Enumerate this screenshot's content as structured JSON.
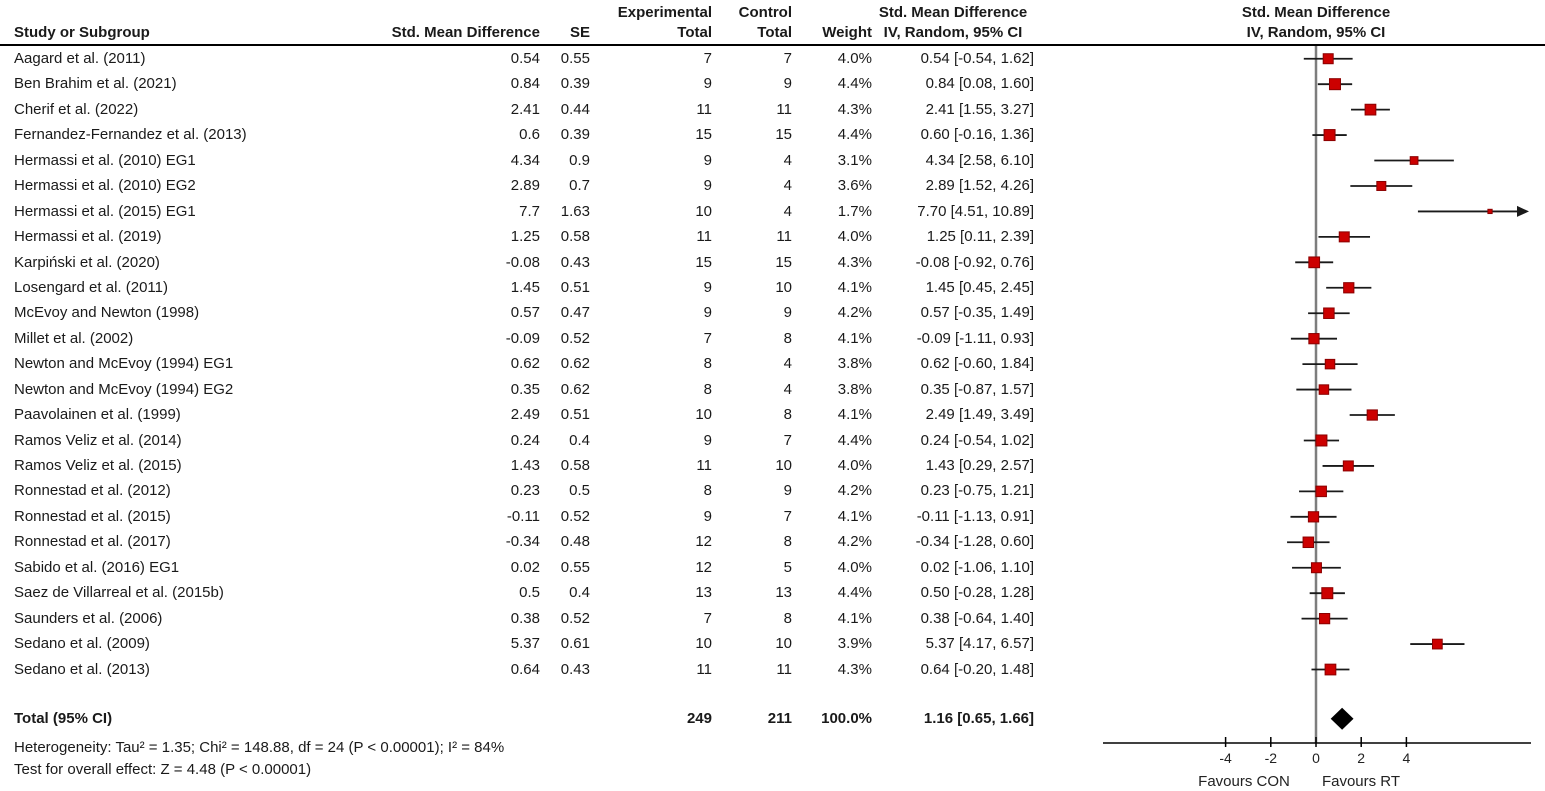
{
  "header": {
    "experimental": "Experimental",
    "control": "Control",
    "study": "Study or Subgroup",
    "smd_col": "Std. Mean Difference",
    "se": "SE",
    "total_exp": "Total",
    "total_ctrl": "Total",
    "weight": "Weight",
    "smd_ci_line1": "Std. Mean Difference",
    "smd_ci_line2": "IV, Random, 95% CI",
    "plot_line1": "Std. Mean Difference",
    "plot_line2": "IV, Random, 95% CI"
  },
  "total_row": {
    "label": "Total (95% CI)",
    "exp_total": "249",
    "ctrl_total": "211",
    "weight": "100.0%",
    "ci_text": "1.16 [0.65, 1.66]",
    "est": 1.16,
    "lo": 0.65,
    "hi": 1.66
  },
  "footer": {
    "heterogeneity": "Heterogeneity: Tau² = 1.35; Chi² = 148.88, df = 24 (P < 0.00001); I² = 84%",
    "overall_effect": "Test for overall effect: Z = 4.48 (P < 0.00001)"
  },
  "colors": {
    "marker": "#cc0000",
    "marker_border": "#8b0000",
    "ci_line": "#1a1a1a",
    "zero_line": "#7d7d7d",
    "axis": "#000000",
    "diamond": "#000000"
  },
  "chart_data": {
    "type": "scatter",
    "subtype": "forest-plot",
    "title": "Std. Mean Difference IV, Random, 95% CI",
    "x_axis": {
      "ticks": [
        -4,
        -2,
        0,
        2,
        4
      ],
      "favours_left": "Favours CON",
      "favours_right": "Favours RT"
    },
    "studies": [
      {
        "name": "Aagard et al. (2011)",
        "smd": "0.54",
        "se": "0.55",
        "exp_total": "7",
        "ctrl_total": "7",
        "weight": "4.0%",
        "ci_text": "0.54 [-0.54, 1.62]",
        "est": 0.54,
        "lo": -0.54,
        "hi": 1.62
      },
      {
        "name": "Ben Brahim et al. (2021)",
        "smd": "0.84",
        "se": "0.39",
        "exp_total": "9",
        "ctrl_total": "9",
        "weight": "4.4%",
        "ci_text": "0.84 [0.08, 1.60]",
        "est": 0.84,
        "lo": 0.08,
        "hi": 1.6
      },
      {
        "name": "Cherif et al. (2022)",
        "smd": "2.41",
        "se": "0.44",
        "exp_total": "11",
        "ctrl_total": "11",
        "weight": "4.3%",
        "ci_text": "2.41 [1.55, 3.27]",
        "est": 2.41,
        "lo": 1.55,
        "hi": 3.27
      },
      {
        "name": "Fernandez-Fernandez et al. (2013)",
        "smd": "0.6",
        "se": "0.39",
        "exp_total": "15",
        "ctrl_total": "15",
        "weight": "4.4%",
        "ci_text": "0.60 [-0.16, 1.36]",
        "est": 0.6,
        "lo": -0.16,
        "hi": 1.36
      },
      {
        "name": "Hermassi et al. (2010) EG1",
        "smd": "4.34",
        "se": "0.9",
        "exp_total": "9",
        "ctrl_total": "4",
        "weight": "3.1%",
        "ci_text": "4.34 [2.58, 6.10]",
        "est": 4.34,
        "lo": 2.58,
        "hi": 6.1
      },
      {
        "name": "Hermassi et al. (2010) EG2",
        "smd": "2.89",
        "se": "0.7",
        "exp_total": "9",
        "ctrl_total": "4",
        "weight": "3.6%",
        "ci_text": "2.89 [1.52, 4.26]",
        "est": 2.89,
        "lo": 1.52,
        "hi": 4.26
      },
      {
        "name": "Hermassi et al. (2015) EG1",
        "smd": "7.7",
        "se": "1.63",
        "exp_total": "10",
        "ctrl_total": "4",
        "weight": "1.7%",
        "ci_text": "7.70 [4.51, 10.89]",
        "est": 7.7,
        "lo": 4.51,
        "hi": 10.89
      },
      {
        "name": "Hermassi et al. (2019)",
        "smd": "1.25",
        "se": "0.58",
        "exp_total": "11",
        "ctrl_total": "11",
        "weight": "4.0%",
        "ci_text": "1.25 [0.11, 2.39]",
        "est": 1.25,
        "lo": 0.11,
        "hi": 2.39
      },
      {
        "name": "Karpiński et al. (2020)",
        "smd": "-0.08",
        "se": "0.43",
        "exp_total": "15",
        "ctrl_total": "15",
        "weight": "4.3%",
        "ci_text": "-0.08 [-0.92, 0.76]",
        "est": -0.08,
        "lo": -0.92,
        "hi": 0.76
      },
      {
        "name": "Losengard et al. (2011)",
        "smd": "1.45",
        "se": "0.51",
        "exp_total": "9",
        "ctrl_total": "10",
        "weight": "4.1%",
        "ci_text": "1.45 [0.45, 2.45]",
        "est": 1.45,
        "lo": 0.45,
        "hi": 2.45
      },
      {
        "name": "McEvoy and Newton (1998)",
        "smd": "0.57",
        "se": "0.47",
        "exp_total": "9",
        "ctrl_total": "9",
        "weight": "4.2%",
        "ci_text": "0.57 [-0.35, 1.49]",
        "est": 0.57,
        "lo": -0.35,
        "hi": 1.49
      },
      {
        "name": "Millet et al. (2002)",
        "smd": "-0.09",
        "se": "0.52",
        "exp_total": "7",
        "ctrl_total": "8",
        "weight": "4.1%",
        "ci_text": "-0.09 [-1.11, 0.93]",
        "est": -0.09,
        "lo": -1.11,
        "hi": 0.93
      },
      {
        "name": "Newton and McEvoy (1994) EG1",
        "smd": "0.62",
        "se": "0.62",
        "exp_total": "8",
        "ctrl_total": "4",
        "weight": "3.8%",
        "ci_text": "0.62 [-0.60, 1.84]",
        "est": 0.62,
        "lo": -0.6,
        "hi": 1.84
      },
      {
        "name": "Newton and McEvoy (1994) EG2",
        "smd": "0.35",
        "se": "0.62",
        "exp_total": "8",
        "ctrl_total": "4",
        "weight": "3.8%",
        "ci_text": "0.35 [-0.87, 1.57]",
        "est": 0.35,
        "lo": -0.87,
        "hi": 1.57
      },
      {
        "name": "Paavolainen et al. (1999)",
        "smd": "2.49",
        "se": "0.51",
        "exp_total": "10",
        "ctrl_total": "8",
        "weight": "4.1%",
        "ci_text": "2.49 [1.49, 3.49]",
        "est": 2.49,
        "lo": 1.49,
        "hi": 3.49
      },
      {
        "name": "Ramos Veliz et al. (2014)",
        "smd": "0.24",
        "se": "0.4",
        "exp_total": "9",
        "ctrl_total": "7",
        "weight": "4.4%",
        "ci_text": "0.24 [-0.54, 1.02]",
        "est": 0.24,
        "lo": -0.54,
        "hi": 1.02
      },
      {
        "name": "Ramos Veliz et al. (2015)",
        "smd": "1.43",
        "se": "0.58",
        "exp_total": "11",
        "ctrl_total": "10",
        "weight": "4.0%",
        "ci_text": "1.43 [0.29, 2.57]",
        "est": 1.43,
        "lo": 0.29,
        "hi": 2.57
      },
      {
        "name": "Ronnestad et al. (2012)",
        "smd": "0.23",
        "se": "0.5",
        "exp_total": "8",
        "ctrl_total": "9",
        "weight": "4.2%",
        "ci_text": "0.23 [-0.75, 1.21]",
        "est": 0.23,
        "lo": -0.75,
        "hi": 1.21
      },
      {
        "name": "Ronnestad et al. (2015)",
        "smd": "-0.11",
        "se": "0.52",
        "exp_total": "9",
        "ctrl_total": "7",
        "weight": "4.1%",
        "ci_text": "-0.11 [-1.13, 0.91]",
        "est": -0.11,
        "lo": -1.13,
        "hi": 0.91
      },
      {
        "name": "Ronnestad et al. (2017)",
        "smd": "-0.34",
        "se": "0.48",
        "exp_total": "12",
        "ctrl_total": "8",
        "weight": "4.2%",
        "ci_text": "-0.34 [-1.28, 0.60]",
        "est": -0.34,
        "lo": -1.28,
        "hi": 0.6
      },
      {
        "name": "Sabido et al. (2016) EG1",
        "smd": "0.02",
        "se": "0.55",
        "exp_total": "12",
        "ctrl_total": "5",
        "weight": "4.0%",
        "ci_text": "0.02 [-1.06, 1.10]",
        "est": 0.02,
        "lo": -1.06,
        "hi": 1.1
      },
      {
        "name": "Saez de Villarreal et al. (2015b)",
        "smd": "0.5",
        "se": "0.4",
        "exp_total": "13",
        "ctrl_total": "13",
        "weight": "4.4%",
        "ci_text": "0.50 [-0.28, 1.28]",
        "est": 0.5,
        "lo": -0.28,
        "hi": 1.28
      },
      {
        "name": "Saunders et al. (2006)",
        "smd": "0.38",
        "se": "0.52",
        "exp_total": "7",
        "ctrl_total": "8",
        "weight": "4.1%",
        "ci_text": "0.38 [-0.64, 1.40]",
        "est": 0.38,
        "lo": -0.64,
        "hi": 1.4
      },
      {
        "name": "Sedano et al. (2009)",
        "smd": "5.37",
        "se": "0.61",
        "exp_total": "10",
        "ctrl_total": "10",
        "weight": "3.9%",
        "ci_text": "5.37 [4.17, 6.57]",
        "est": 5.37,
        "lo": 4.17,
        "hi": 6.57
      },
      {
        "name": "Sedano et al. (2013)",
        "smd": "0.64",
        "se": "0.43",
        "exp_total": "11",
        "ctrl_total": "11",
        "weight": "4.3%",
        "ci_text": "0.64 [-0.20, 1.48]",
        "est": 0.64,
        "lo": -0.2,
        "hi": 1.48
      }
    ],
    "total": {
      "label": "Total (95% CI)",
      "est": 1.16,
      "lo": 0.65,
      "hi": 1.66
    }
  }
}
